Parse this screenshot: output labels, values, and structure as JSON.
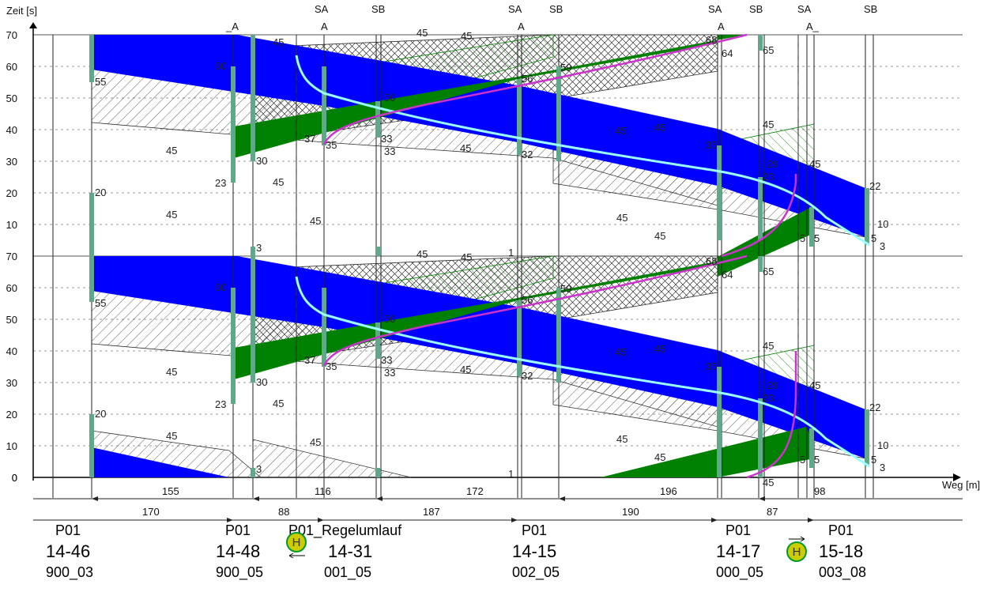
{
  "chart_data": {
    "type": "time-distance diagram",
    "ylabel": "Zeit [s]",
    "xlabel": "Weg [m]",
    "ylim": [
      0,
      70
    ],
    "yticks": [
      "0",
      "10",
      "20",
      "30",
      "40",
      "50",
      "60",
      "70"
    ],
    "cycles_shown": 2,
    "colors": {
      "blue_band": "#0000ff",
      "green_band": "#008000",
      "signal_bar": "#5fa88a",
      "magenta_curve": "#cc33cc",
      "cyan_curve": "#99ffff",
      "hatch": "#444444",
      "hatch_green": "#008000"
    },
    "signal_heads": [
      {
        "x": 410,
        "label": "SA"
      },
      {
        "x": 482,
        "label": "SB"
      },
      {
        "x": 655,
        "label": "SA"
      },
      {
        "x": 707,
        "label": "SB"
      },
      {
        "x": 908,
        "label": "SA"
      },
      {
        "x": 960,
        "label": "SB"
      },
      {
        "x": 1021,
        "label": "SA"
      },
      {
        "x": 1105,
        "label": "SB"
      }
    ],
    "phase_labels": [
      "_A",
      "A",
      "A",
      "A",
      "A_"
    ],
    "distances_upper": [
      "155",
      "116",
      "172",
      "196",
      "98"
    ],
    "distances_lower": [
      "170",
      "88",
      "187",
      "190",
      "87"
    ],
    "junctions": [
      {
        "program": "P01",
        "id": "14-46",
        "code": "900_03"
      },
      {
        "program": "P01",
        "id": "14-48",
        "code": "900_05"
      },
      {
        "program": "P01_Regelumlauf",
        "id": "14-31",
        "code": "001_05"
      },
      {
        "program": "P01",
        "id": "14-15",
        "code": "002_05"
      },
      {
        "program": "P01",
        "id": "14-17",
        "code": "000_05"
      },
      {
        "program": "P01",
        "id": "15-18",
        "code": "003_08"
      }
    ],
    "stop_symbol": "H",
    "green_times": [
      {
        "from": "55",
        "to": "20"
      },
      {
        "from": "23",
        "to": "60"
      },
      {
        "from": "30",
        "to": "3"
      },
      {
        "from": "35",
        "to": "60"
      },
      {
        "from": "33",
        "to": "3"
      },
      {
        "from": "32",
        "to": "1"
      },
      {
        "from": "32",
        "to": "59"
      },
      {
        "from": "64",
        "to": "35"
      },
      {
        "from": "65",
        "to": "29"
      },
      {
        "from": "3",
        "to": "22"
      }
    ],
    "labels": [
      "55",
      "20",
      "60",
      "23",
      "30",
      "3",
      "37",
      "35",
      "33",
      "50",
      "56",
      "32",
      "59",
      "1",
      "68",
      "64",
      "35",
      "65",
      "29",
      "23",
      "22",
      "10",
      "5",
      "3",
      "45",
      "15"
    ],
    "band_slopes_label": "45"
  }
}
